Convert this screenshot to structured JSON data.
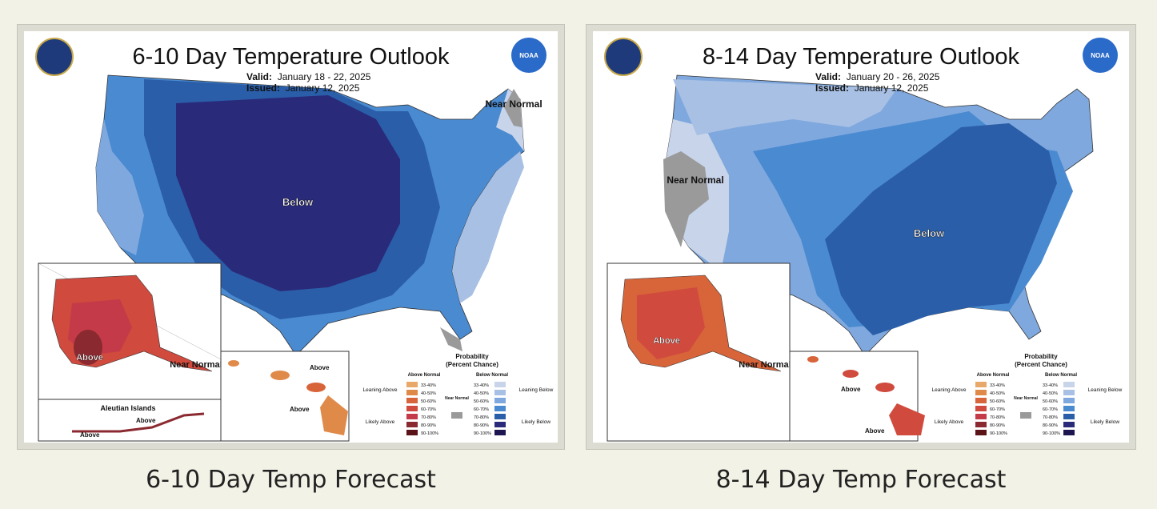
{
  "panels": [
    {
      "title": "6-10 Day Temperature Outlook",
      "valid_label": "Valid:",
      "valid_value": "January 18 - 22, 2025",
      "issued_label": "Issued:",
      "issued_value": "January 12, 2025",
      "region_labels": {
        "main": "Below",
        "near_normal_ne": "Near Normal",
        "alaska": "Above",
        "alaska_near": "Near Normal",
        "aleutian_title": "Aleutian Islands",
        "aleutian_above_1": "Above",
        "aleutian_above_2": "Above",
        "hawaii_above_1": "Above",
        "hawaii_above_2": "Above"
      },
      "caption": "6-10 Day Temp Forecast"
    },
    {
      "title": "8-14 Day Temperature Outlook",
      "valid_label": "Valid:",
      "valid_value": "January 20 - 26, 2025",
      "issued_label": "Issued:",
      "issued_value": "January 12, 2025",
      "region_labels": {
        "main": "Below",
        "near_normal_w": "Near Normal",
        "alaska": "Above",
        "alaska_near": "Near Normal",
        "hawaii_above_1": "Above",
        "hawaii_above_2": "Above"
      },
      "caption": "8-14 Day Temp Forecast"
    }
  ],
  "legend": {
    "title": "Probability",
    "subtitle": "(Percent Chance)",
    "above_header": "Above Normal",
    "below_header": "Below Normal",
    "near_label": "Near Normal",
    "leaning_above": "Leaning Above",
    "likely_above": "Likely Above",
    "leaning_below": "Leaning Below",
    "likely_below": "Likely Below",
    "ranges": [
      "33-40%",
      "40-50%",
      "50-60%",
      "60-70%",
      "70-80%",
      "80-90%",
      "90-100%"
    ],
    "above_colors": [
      "#e8a86a",
      "#e08a4a",
      "#d8643a",
      "#d04a3e",
      "#c53a48",
      "#8a2a30",
      "#5a1418"
    ],
    "below_colors": [
      "#c8d4ea",
      "#a8c0e4",
      "#7fa8de",
      "#4a8ad0",
      "#2a5ea8",
      "#2a2a7a",
      "#1e1650"
    ],
    "near_color": "#9a9a9a"
  },
  "seal_labels": {
    "noaa": "NOAA"
  }
}
